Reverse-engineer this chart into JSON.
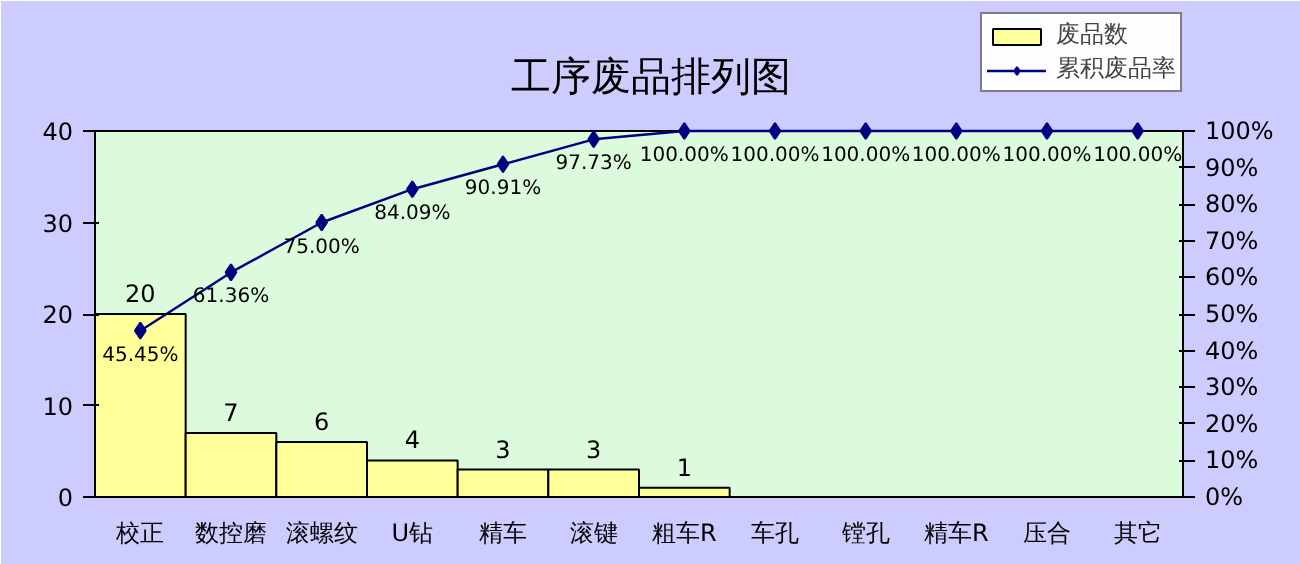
{
  "chart_data": {
    "type": "bar",
    "title": "工序废品排列图",
    "categories": [
      "校正",
      "数控磨",
      "滚螺纹",
      "U钻",
      "精车",
      "滚键",
      "粗车R",
      "车孔",
      "镗孔",
      "精车R",
      "压合",
      "其它"
    ],
    "series": [
      {
        "name": "废品数",
        "color": "#ffff99",
        "values": [
          20,
          7,
          6,
          4,
          3,
          3,
          1,
          0,
          0,
          0,
          0,
          0
        ],
        "value_labels": [
          "20",
          "7",
          "6",
          "4",
          "3",
          "3",
          "1",
          null,
          null,
          null,
          null,
          null
        ]
      },
      {
        "name": "累积废品率",
        "type": "line",
        "axis": "y2",
        "color": "#000080",
        "marker": "diamond",
        "values": [
          45.45,
          61.36,
          75.0,
          84.09,
          90.91,
          97.73,
          100,
          100,
          100,
          100,
          100,
          100
        ],
        "value_labels": [
          "45.45%",
          "61.36%",
          "75.00%",
          "84.09%",
          "90.91%",
          "97.73%",
          "100.00%",
          "100.00%",
          "100.00%",
          "100.00%",
          "100.00%",
          "100.00%"
        ]
      }
    ],
    "ylim": [
      0,
      40
    ],
    "yticks": [
      0,
      10,
      20,
      30,
      40
    ],
    "y2lim": [
      0,
      100
    ],
    "y2ticks": [
      {
        "value": 0,
        "label": "0%"
      },
      {
        "value": 10,
        "label": "10%"
      },
      {
        "value": 20,
        "label": "20%"
      },
      {
        "value": 30,
        "label": "30%"
      },
      {
        "value": 40,
        "label": "40%"
      },
      {
        "value": 50,
        "label": "50%"
      },
      {
        "value": 60,
        "label": "60%"
      },
      {
        "value": 70,
        "label": "70%"
      },
      {
        "value": 80,
        "label": "80%"
      },
      {
        "value": 90,
        "label": "90%"
      },
      {
        "value": 100,
        "label": "100%"
      }
    ],
    "grid": false,
    "legend": "top right"
  }
}
